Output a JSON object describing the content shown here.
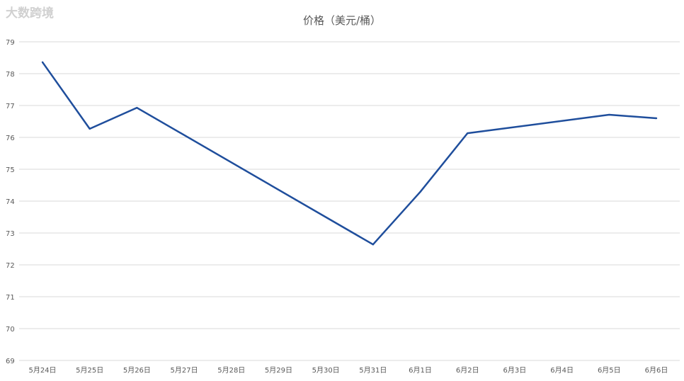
{
  "chart_data": {
    "type": "line",
    "title": "价格（美元/桶）",
    "xlabel": "",
    "ylabel": "",
    "categories": [
      "5月24日",
      "5月25日",
      "5月26日",
      "5月27日",
      "5月28日",
      "5月29日",
      "5月30日",
      "5月31日",
      "6月1日",
      "6月2日",
      "6月3日",
      "6月4日",
      "6月5日",
      "6月6日"
    ],
    "series": [
      {
        "values": [
          78.36,
          76.27,
          76.93,
          null,
          null,
          null,
          null,
          72.64,
          74.29,
          76.13,
          null,
          null,
          76.71,
          76.6
        ],
        "color": "#1f4e9c"
      }
    ],
    "ylim": [
      69,
      79
    ],
    "yticks": [
      69,
      70,
      71,
      72,
      73,
      74,
      75,
      76,
      77,
      78,
      79
    ],
    "grid": true,
    "legend": "none",
    "connect_gaps": true
  },
  "watermark": "大数跨境"
}
